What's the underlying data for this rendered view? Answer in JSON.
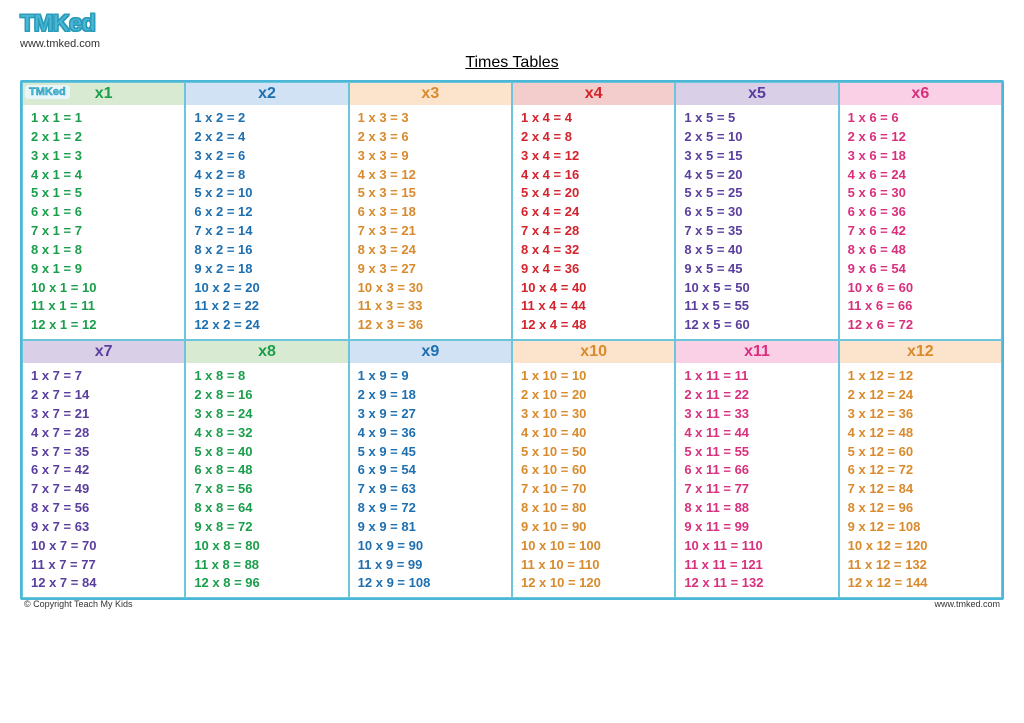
{
  "brand": {
    "logo_text": "TMKed",
    "url": "www.tmked.com",
    "copyright": "© Copyright Teach My Kids"
  },
  "title": "Times Tables",
  "header_bg_colors": [
    "#d9ead3",
    "#d0e2f3",
    "#fce4cc",
    "#f3cccc",
    "#d9d0e8",
    "#f9d0e6",
    "#d9d0e8",
    "#d9ead3",
    "#d0e2f3",
    "#fce4cc",
    "#f9d0e6",
    "#fce4cc"
  ],
  "text_colors": [
    "#1a9e4b",
    "#1e6fb0",
    "#d88a2c",
    "#d4232c",
    "#5a3e9e",
    "#d9307e",
    "#5a3e9e",
    "#1a9e4b",
    "#1e6fb0",
    "#d88a2c",
    "#d9307e",
    "#d88a2c"
  ],
  "tables": [
    {
      "n": 1,
      "label": "x1"
    },
    {
      "n": 2,
      "label": "x2"
    },
    {
      "n": 3,
      "label": "x3"
    },
    {
      "n": 4,
      "label": "x4"
    },
    {
      "n": 5,
      "label": "x5"
    },
    {
      "n": 6,
      "label": "x6"
    },
    {
      "n": 7,
      "label": "x7"
    },
    {
      "n": 8,
      "label": "x8"
    },
    {
      "n": 9,
      "label": "x9"
    },
    {
      "n": 10,
      "label": "x10"
    },
    {
      "n": 11,
      "label": "x11"
    },
    {
      "n": 12,
      "label": "x12"
    }
  ],
  "multiplier_range": [
    1,
    12
  ],
  "eq_format": "{a} x {b} = {c}",
  "style": {
    "font_family": "Comic Sans MS",
    "border_color": "#4ab7d6",
    "header_fontsize": 16,
    "body_fontsize": 13,
    "page_bg": "#ffffff"
  }
}
